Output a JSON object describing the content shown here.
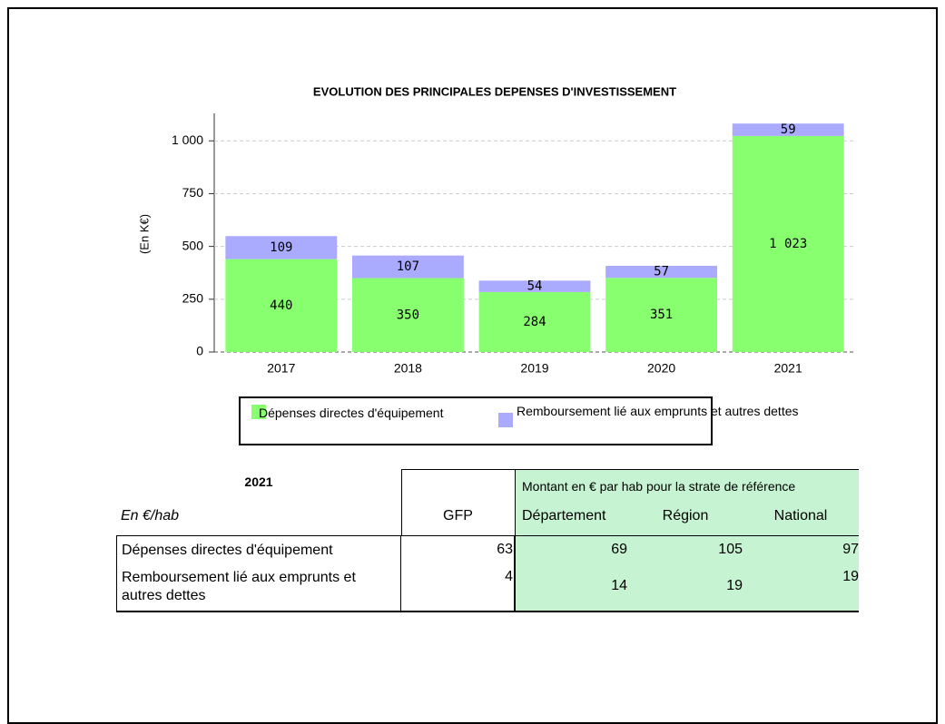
{
  "chart_data": {
    "type": "stacked-bar",
    "title": "EVOLUTION DES PRINCIPALES DEPENSES D'INVESTISSEMENT",
    "ylabel": "(En K€)",
    "categories": [
      "2017",
      "2018",
      "2019",
      "2020",
      "2021"
    ],
    "series": [
      {
        "name": "Dépenses directes d'équipement",
        "color": "#88ff6e",
        "values": [
          440,
          350,
          284,
          351,
          1023
        ],
        "value_labels": [
          "440",
          "350",
          "284",
          "351",
          "1 023"
        ]
      },
      {
        "name": "Remboursement lié aux emprunts et autres dettes",
        "color": "#aaaaff",
        "values": [
          109,
          107,
          54,
          57,
          59
        ]
      }
    ],
    "ylim": [
      0,
      1130
    ],
    "yticks": [
      0,
      250,
      500,
      750,
      {
        "value": 1000,
        "label": "1 000"
      }
    ],
    "grid": true
  },
  "table": {
    "title": "2021",
    "unit": "En €/hab",
    "group_header": "Montant en € par hab pour la strate de référence",
    "columns": [
      "GFP",
      "Département",
      "Région",
      "National"
    ],
    "rows": [
      {
        "label": "Dépenses directes d'équipement",
        "values": [
          63,
          69,
          105,
          97
        ]
      },
      {
        "label": "Remboursement lié aux emprunts et autres dettes",
        "values": [
          4,
          14,
          19,
          19
        ]
      }
    ]
  }
}
